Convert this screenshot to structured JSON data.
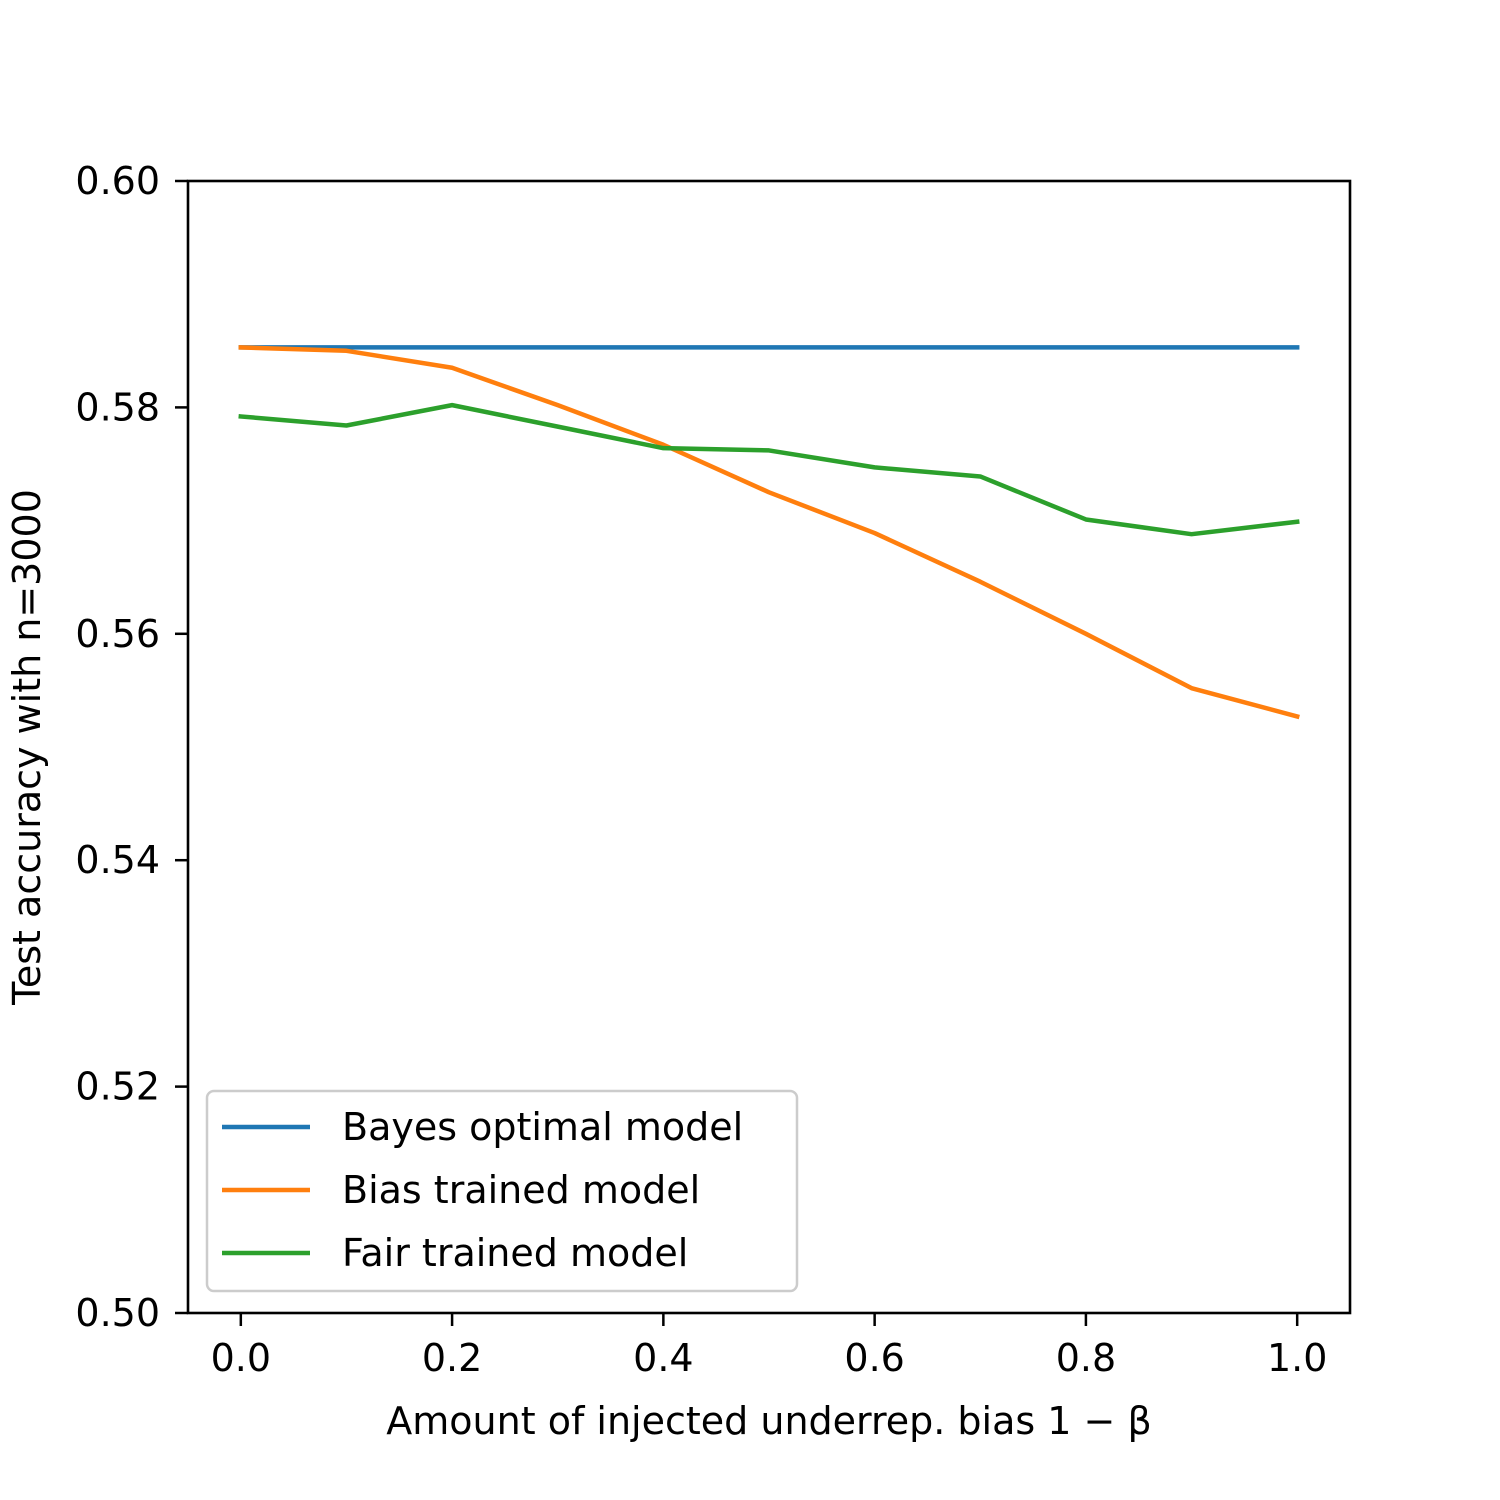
{
  "chart_data": {
    "type": "line",
    "xlabel": "Amount of injected underrep. bias 1 − β",
    "ylabel": "Test accuracy with n=3000",
    "xlim": [
      -0.05,
      1.05
    ],
    "ylim": [
      0.5,
      0.6
    ],
    "x_ticks": [
      "0.0",
      "0.2",
      "0.4",
      "0.6",
      "0.8",
      "1.0"
    ],
    "y_ticks": [
      "0.50",
      "0.52",
      "0.54",
      "0.56",
      "0.58",
      "0.60"
    ],
    "grid": false,
    "legend_position": "lower-left",
    "x": [
      0.0,
      0.1,
      0.2,
      0.3,
      0.4,
      0.5,
      0.6,
      0.7,
      0.8,
      0.9,
      1.0
    ],
    "series": [
      {
        "name": "Bayes optimal model",
        "color": "#1f77b4",
        "values": [
          0.5853,
          0.5853,
          0.5853,
          0.5853,
          0.5853,
          0.5853,
          0.5853,
          0.5853,
          0.5853,
          0.5853,
          0.5853
        ]
      },
      {
        "name": "Bias trained model",
        "color": "#ff7f0e",
        "values": [
          0.5853,
          0.585,
          0.5835,
          0.5802,
          0.5767,
          0.5725,
          0.5689,
          0.5646,
          0.56,
          0.5552,
          0.5527
        ]
      },
      {
        "name": "Fair trained model",
        "color": "#2ca02c",
        "values": [
          0.5792,
          0.5784,
          0.5802,
          0.5783,
          0.5764,
          0.5762,
          0.5747,
          0.5739,
          0.5701,
          0.5688,
          0.5699
        ]
      }
    ]
  }
}
